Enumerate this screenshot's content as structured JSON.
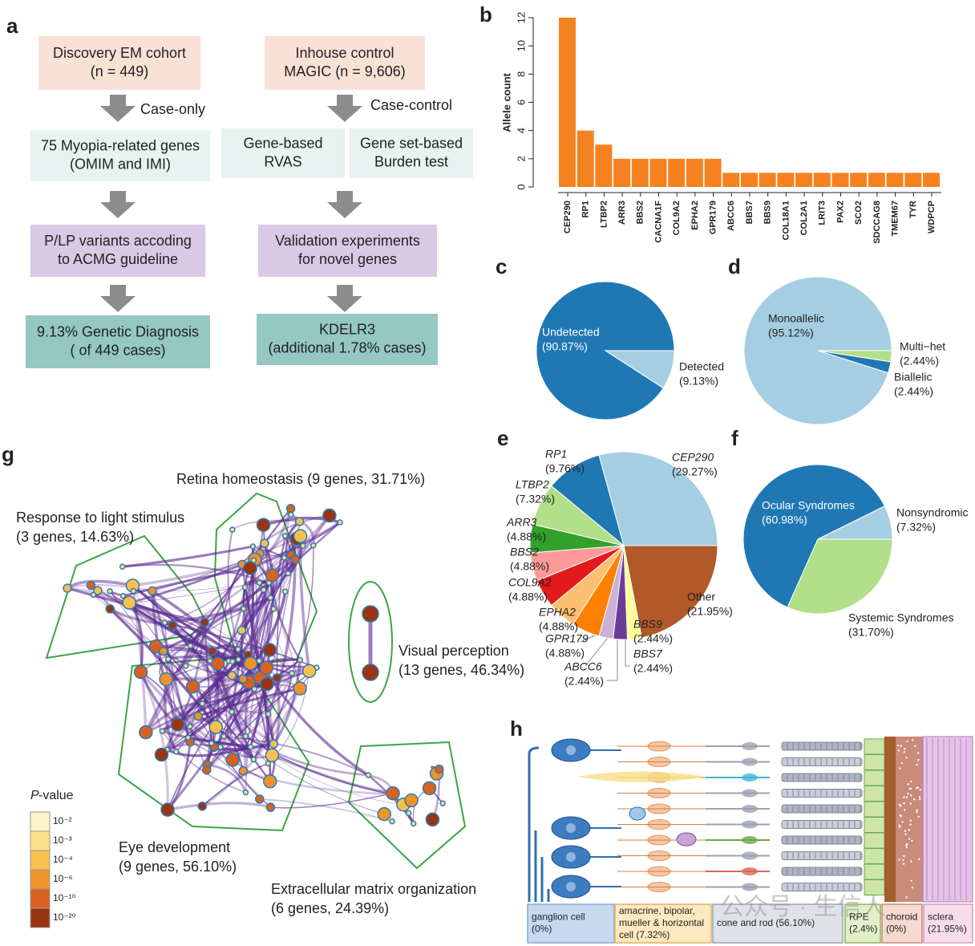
{
  "panel_labels": [
    "a",
    "b",
    "c",
    "d",
    "e",
    "f",
    "g",
    "h"
  ],
  "flowchart": {
    "boxes": [
      {
        "lines": [
          "Discovery EM cohort",
          "(n = 449)"
        ]
      },
      {
        "lines": [
          "Inhouse control",
          "MAGIC (n = 9,606)"
        ]
      },
      {
        "lines": [
          "75 Myopia-related genes",
          "(OMIM and IMI)"
        ]
      },
      {
        "lines": [
          "Gene-based",
          "RVAS"
        ]
      },
      {
        "lines": [
          "Gene set-based",
          "Burden test"
        ]
      },
      {
        "lines": [
          "P/LP variants accoding",
          "to ACMG guideline"
        ]
      },
      {
        "lines": [
          "Validation experiments",
          "for novel genes"
        ]
      },
      {
        "lines": [
          "9.13% Genetic Diagnosis",
          "( of 449 cases)"
        ]
      },
      {
        "lines": [
          "KDELR3",
          "(additional 1.78% cases)"
        ]
      }
    ],
    "arrow_labels": [
      "Case-only",
      "Case-control"
    ]
  },
  "chart_data": [
    {
      "type": "bar",
      "ylabel": "Allele count",
      "categories": [
        "CEP290",
        "RP1",
        "LTBP2",
        "ARR3",
        "BBS2",
        "CACNA1F",
        "COL9A2",
        "EPHA2",
        "GPR179",
        "ABCC6",
        "BBS7",
        "BBS9",
        "COL18A1",
        "COL2A1",
        "LRIT3",
        "PAX2",
        "SCO2",
        "SDCCAG8",
        "TMEM67",
        "TYR",
        "WDPCP"
      ],
      "values": [
        12,
        4,
        3,
        2,
        2,
        2,
        2,
        2,
        2,
        1,
        1,
        1,
        1,
        1,
        1,
        1,
        1,
        1,
        1,
        1,
        1
      ],
      "color": "#f58220",
      "ylim": [
        0,
        12
      ],
      "yticks": [
        0,
        2,
        4,
        6,
        8,
        10,
        12
      ]
    },
    {
      "type": "pie",
      "labels": [
        "Detected",
        "Undetected"
      ],
      "values": [
        9.13,
        90.87
      ],
      "value_labels": [
        "(9.13%)",
        "(90.87%)"
      ],
      "colors": [
        "#a6cee3",
        "#1f78b4"
      ]
    },
    {
      "type": "pie",
      "labels": [
        "Multi−het",
        "Biallelic",
        "Monoallelic"
      ],
      "values": [
        2.44,
        2.44,
        95.12
      ],
      "value_labels": [
        "(2.44%)",
        "(2.44%)",
        "(95.12%)"
      ],
      "colors": [
        "#b2df8a",
        "#1f78b4",
        "#a6cee3"
      ]
    },
    {
      "type": "pie",
      "labels": [
        "Other",
        "BBS9",
        "BBS7",
        "ABCC6",
        "GPR179",
        "EPHA2",
        "COL9A2",
        "BBS2",
        "ARR3",
        "LTBP2",
        "RP1",
        "CEP290"
      ],
      "values": [
        21.95,
        2.44,
        2.44,
        2.44,
        4.88,
        4.88,
        4.88,
        4.88,
        4.88,
        7.32,
        9.76,
        29.27
      ],
      "value_labels": [
        "(21.95%)",
        "(2.44%)",
        "(2.44%)",
        "(2.44%)",
        "(4.88%)",
        "(4.88%)",
        "(4.88%)",
        "(4.88%)",
        "(4.88%)",
        "(7.32%)",
        "(9.76%)",
        "(29.27%)"
      ],
      "colors": [
        "#b15928",
        "#ffff99",
        "#6a3d9a",
        "#cab2d6",
        "#ff7f00",
        "#fdbf6f",
        "#e31a1c",
        "#fb9a99",
        "#33a02c",
        "#b2df8a",
        "#1f78b4",
        "#a6cee3"
      ]
    },
    {
      "type": "pie",
      "labels": [
        "Systemic Syndromes",
        "Ocular Syndromes",
        "Nonsyndromic"
      ],
      "values": [
        31.7,
        60.98,
        7.32
      ],
      "value_labels": [
        "(31.70%)",
        "(60.98%)",
        "(7.32%)"
      ],
      "colors": [
        "#b2df8a",
        "#1f78b4",
        "#a6cee3"
      ]
    }
  ],
  "network": {
    "clusters": [
      {
        "lines": [
          "Retina homeostasis (9 genes, 31.71%)"
        ]
      },
      {
        "lines": [
          "Response to light stimulus",
          "(3 genes, 14.63%)"
        ]
      },
      {
        "lines": [
          "Visual perception",
          "(13 genes, 46.34%)"
        ]
      },
      {
        "lines": [
          "Eye development",
          "(9 genes, 56.10%)"
        ]
      },
      {
        "lines": [
          "Extracellular matrix organization",
          "(6 genes, 24.39%)"
        ]
      }
    ],
    "legend": {
      "title": [
        "P",
        "-value"
      ],
      "labels": [
        "10⁻²",
        "10⁻³",
        "10⁻⁴",
        "10⁻⁶",
        "10⁻¹⁰",
        "10⁻²⁰"
      ],
      "colors": [
        "#fdf3c4",
        "#fce08a",
        "#f9bf4f",
        "#f0922b",
        "#d9611f",
        "#9a3413"
      ]
    }
  },
  "retina": {
    "cells": [
      {
        "lines": [
          "ganglion cell",
          "(0%)"
        ]
      },
      {
        "lines": [
          "amacrine, bipolar,",
          "mueller & horizontal",
          "cell (7.32%)"
        ]
      },
      {
        "lines": [
          "cone and rod (56.10%)"
        ]
      },
      {
        "lines": [
          "RPE",
          "(2.4%)"
        ]
      },
      {
        "lines": [
          "choroid",
          "(0%)"
        ]
      },
      {
        "lines": [
          "sclera",
          "(21.95%)"
        ]
      }
    ],
    "watermark": "公众号 · 生信人"
  }
}
